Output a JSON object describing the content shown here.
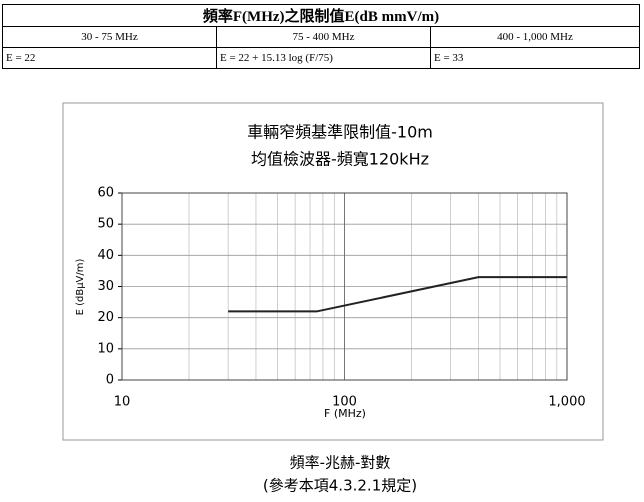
{
  "table": {
    "title": "頻率F(MHz)之限制值E(dB mmV/m)",
    "header": [
      "30 - 75 MHz",
      "75 - 400 MHz",
      "400 - 1,000 MHz"
    ],
    "rows": [
      [
        "E = 22",
        "E = 22 + 15.13 log (F/75)",
        "E = 33"
      ]
    ]
  },
  "chart_data": {
    "type": "line",
    "title": "車輛窄頻基準限制值-10m",
    "subtitle": "均值檢波器-頻寬120kHz",
    "xlabel": "F (MHz)",
    "ylabel": "E (dBμV/m)",
    "x": [
      30,
      75,
      400,
      1000
    ],
    "values": [
      22,
      22,
      33,
      33
    ],
    "color": "#222222",
    "xlim": [
      10,
      1000
    ],
    "xticks": [
      10,
      100,
      {
        "value": 1000,
        "label": "1,000"
      }
    ],
    "xscale": "log",
    "ylim": [
      0,
      60
    ],
    "yticks": [
      0,
      10,
      20,
      30,
      40,
      50,
      60
    ],
    "grid": true,
    "caption": [
      "頻率-兆赫-對數",
      "(參考本項4.3.2.1規定)"
    ]
  }
}
